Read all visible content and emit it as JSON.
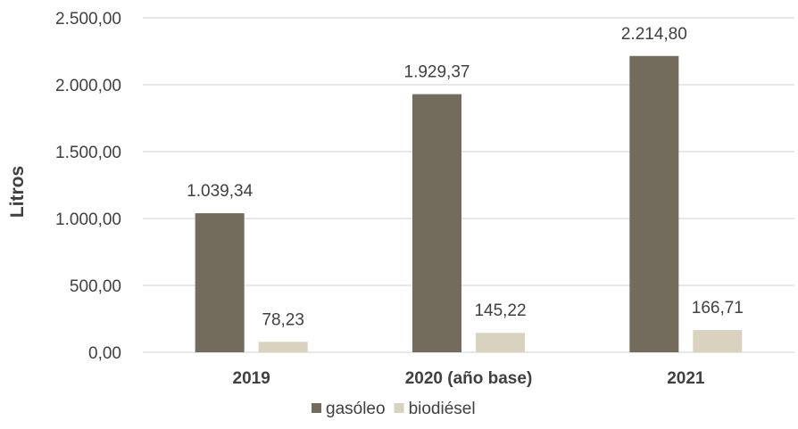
{
  "chart_data": {
    "type": "bar",
    "title": "",
    "xlabel": "",
    "ylabel": "Litros",
    "categories": [
      "2019",
      "2020 (año base)",
      "2021"
    ],
    "series": [
      {
        "name": "gasóleo",
        "color": "#736b5c",
        "values": [
          1039.34,
          1929.37,
          2214.8
        ],
        "labels": [
          "1.039,34",
          "1.929,37",
          "2.214,80"
        ]
      },
      {
        "name": "biodiésel",
        "color": "#d9d2be",
        "values": [
          78.23,
          145.22,
          166.71
        ],
        "labels": [
          "78,23",
          "145,22",
          "166,71"
        ]
      }
    ],
    "ylim": [
      0,
      2500
    ],
    "yticks": [
      0,
      500,
      1000,
      1500,
      2000,
      2500
    ],
    "ytick_labels": [
      "0,00",
      "500,00",
      "1.000,00",
      "1.500,00",
      "2.000,00",
      "2.500,00"
    ],
    "grid": true,
    "legend": "bottom-center"
  }
}
